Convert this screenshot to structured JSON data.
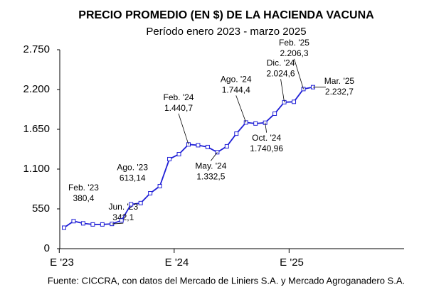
{
  "chart_data": {
    "type": "line",
    "title": "PRECIO PROMEDIO (EN $) DE LA HACIENDA VACUNA",
    "subtitle": "Período enero 2023 - marzo 2025",
    "source": "Fuente: CICCRA, con datos del Mercado de Liniers S.A. y Mercado Agroganadero S.A.",
    "categories": [
      "E '23",
      null,
      null,
      null,
      null,
      null,
      null,
      null,
      null,
      null,
      null,
      null,
      "E '24",
      null,
      null,
      null,
      null,
      null,
      null,
      null,
      null,
      null,
      null,
      null,
      "E '25",
      null,
      null
    ],
    "series": [
      {
        "color": "#1f1fd6",
        "values": [
          290,
          380.4,
          350,
          335,
          335,
          342.1,
          390,
          613.14,
          630,
          766,
          864,
          1238,
          1306,
          1440.7,
          1430,
          1405,
          1332.5,
          1415,
          1590,
          1744.4,
          1730,
          1740.96,
          1866,
          2024.6,
          2030,
          2206.3,
          2232.7
        ],
        "value_labels": [
          null,
          "380,4",
          null,
          null,
          null,
          "342,1",
          null,
          "613,14",
          null,
          null,
          null,
          null,
          null,
          "1.440,7",
          null,
          null,
          "1.332,5",
          null,
          null,
          "1.744,4",
          null,
          "1.740,96",
          null,
          "2.024,6",
          null,
          "2.206,3",
          "2.232,7"
        ],
        "point_labels": [
          null,
          "Feb. '23",
          null,
          null,
          null,
          "Jun. '23",
          null,
          "Ago. '23",
          null,
          null,
          null,
          null,
          null,
          "Feb. '24",
          null,
          null,
          "May. '24",
          null,
          null,
          "Ago. '24",
          null,
          "Oct. '24",
          null,
          "Dic. '24",
          null,
          "Feb. '25",
          "Mar. '25"
        ]
      }
    ],
    "ylim": [
      0,
      2750
    ],
    "yticks": [
      0,
      550,
      {
        "value": 1100,
        "label": "1.100"
      },
      {
        "value": 1650,
        "label": "1.650"
      },
      {
        "value": 2200,
        "label": "2.200"
      },
      {
        "value": 2750,
        "label": "2.750"
      }
    ],
    "grid": false
  }
}
